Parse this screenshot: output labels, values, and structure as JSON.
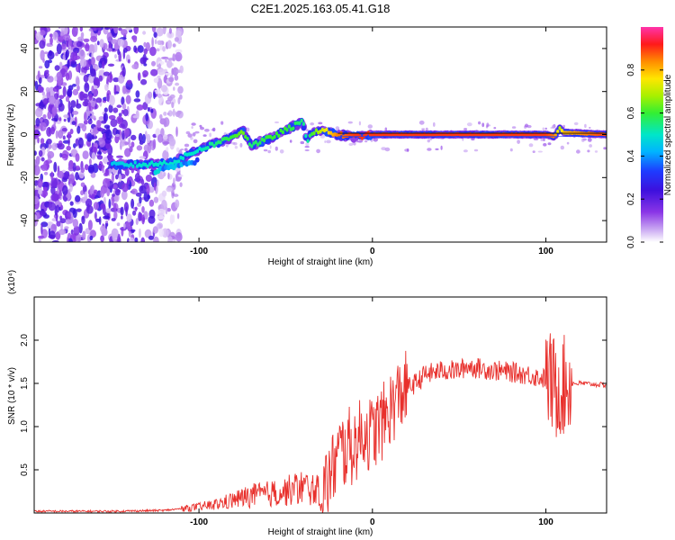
{
  "figure": {
    "title": "C2E1.2025.163.05.41.G18"
  },
  "chart_data": [
    {
      "type": "heatmap",
      "title": "C2E1.2025.163.05.41.G18",
      "xlabel": "Height of straight line (km)",
      "ylabel": "Frequency (Hz)",
      "xlim": [
        -195,
        135
      ],
      "ylim": [
        -50,
        50
      ],
      "xticks": [
        -100,
        0,
        100
      ],
      "xtick_labels": [
        "-100",
        "0",
        "100"
      ],
      "yticks": [
        -40,
        -20,
        0,
        20,
        40
      ],
      "ytick_labels": [
        "-40",
        "-20",
        "0",
        "20",
        "40"
      ],
      "colorbar": {
        "label": "Normalized spectral amplitude",
        "range": [
          0,
          1
        ],
        "ticks": [
          0.0,
          0.2,
          0.4,
          0.6,
          0.8
        ],
        "tick_labels": [
          "0.0",
          "0.2",
          "0.4",
          "0.6",
          "0.8"
        ],
        "colormap": "rainbow (white-violet-blue-cyan-green-yellow-orange-red-magenta)"
      },
      "signal_track": {
        "description": "frequency of the strongest spectral peak versus height",
        "x": [
          -150,
          -130,
          -115,
          -100,
          -90,
          -80,
          -75,
          -70,
          -60,
          -50,
          -40,
          -38,
          -35,
          -30,
          -20,
          -10,
          0,
          10,
          50,
          100,
          105,
          108,
          110,
          135
        ],
        "y": [
          -14,
          -14,
          -13,
          -7,
          -4,
          -1,
          2,
          -5,
          -2,
          2,
          6,
          -3,
          1,
          2,
          0,
          -1,
          0,
          0,
          0,
          0,
          -1,
          3,
          1,
          0
        ],
        "amplitude": [
          0.45,
          0.5,
          0.5,
          0.5,
          0.55,
          0.6,
          0.65,
          0.55,
          0.6,
          0.6,
          0.55,
          0.5,
          0.6,
          0.7,
          0.85,
          0.9,
          0.9,
          0.9,
          0.9,
          0.9,
          0.85,
          0.7,
          0.8,
          0.9
        ]
      },
      "noise_region": {
        "x_range": [
          -195,
          -110
        ],
        "y_range": [
          -50,
          50
        ],
        "amplitude": "0.05-0.25"
      }
    },
    {
      "type": "line",
      "xlabel": "Height of straight line (km)",
      "ylabel": "SNR (10 * v/v)",
      "y_multiplier": "(x10⁴)",
      "xlim": [
        -195,
        135
      ],
      "ylim": [
        0,
        2.5
      ],
      "xticks": [
        -100,
        0,
        100
      ],
      "xtick_labels": [
        "-100",
        "0",
        "100"
      ],
      "yticks": [
        0.5,
        1.0,
        1.5,
        2.0
      ],
      "ytick_labels": [
        "0.5",
        "1.0",
        "1.5",
        "2.0"
      ],
      "color": "#e8302c",
      "series": [
        {
          "x": [
            -195,
            -150,
            -120,
            -100,
            -90,
            -80,
            -70,
            -60,
            -50,
            -45,
            -40,
            -30,
            -26,
            -24,
            -22,
            -20,
            -18,
            -16,
            -14,
            -12,
            -10,
            -8,
            -5,
            0,
            3,
            6,
            10,
            15,
            20,
            25,
            30,
            40,
            50,
            55,
            60,
            70,
            80,
            90,
            100,
            104,
            106,
            108,
            110,
            112,
            115,
            120,
            135
          ],
          "y": [
            0.02,
            0.02,
            0.03,
            0.07,
            0.1,
            0.15,
            0.2,
            0.22,
            0.25,
            0.28,
            0.3,
            0.25,
            0.35,
            0.45,
            0.55,
            0.65,
            0.75,
            0.7,
            0.8,
            0.75,
            0.8,
            0.85,
            0.95,
            0.9,
            1.0,
            1.05,
            1.2,
            1.35,
            1.45,
            1.5,
            1.6,
            1.65,
            1.65,
            1.7,
            1.68,
            1.65,
            1.63,
            1.6,
            1.55,
            1.5,
            1.4,
            1.5,
            1.45,
            1.5,
            1.5,
            1.5,
            1.48
          ]
        }
      ]
    }
  ]
}
